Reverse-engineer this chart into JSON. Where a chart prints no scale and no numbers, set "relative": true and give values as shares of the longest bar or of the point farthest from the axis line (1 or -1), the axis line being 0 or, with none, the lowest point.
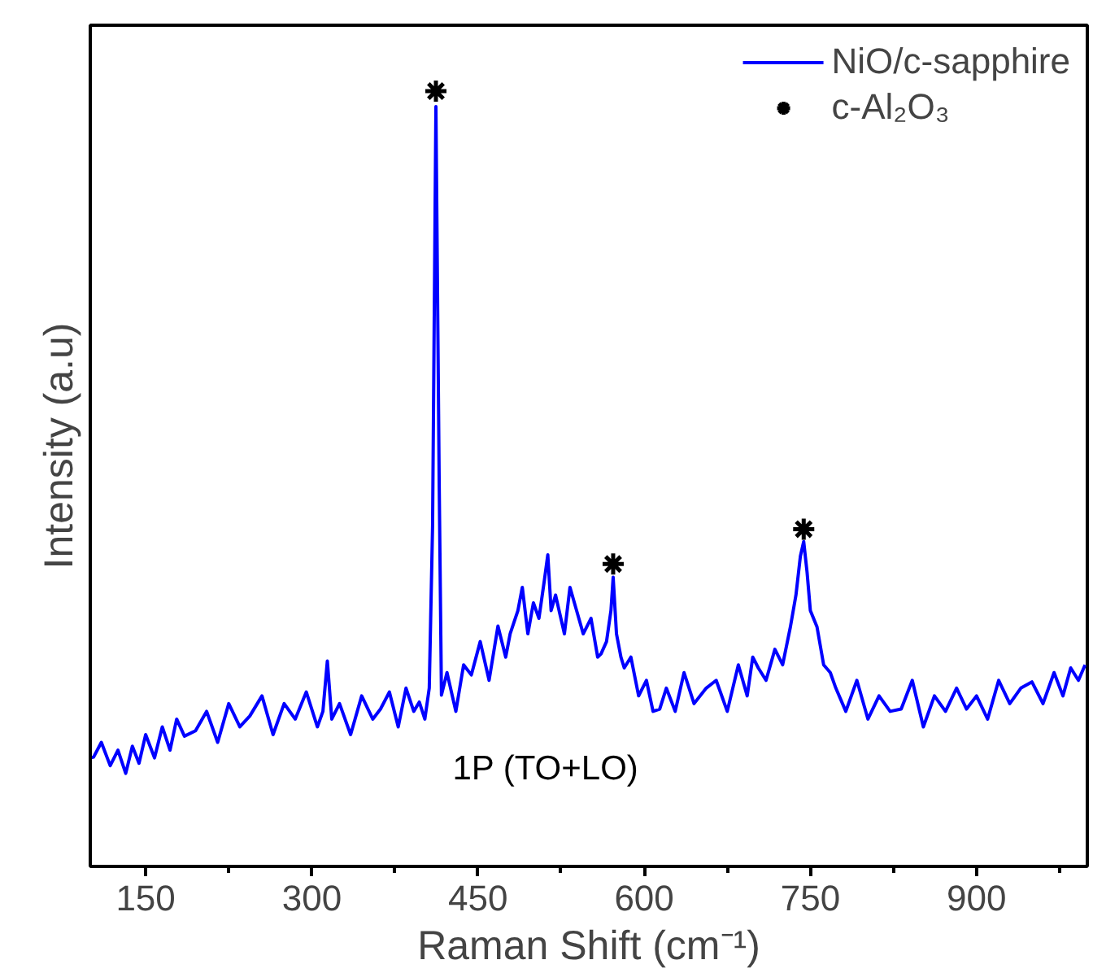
{
  "chart_data": {
    "type": "line",
    "relative": true,
    "xlabel": "Raman Shift (cm⁻¹)",
    "ylabel": "Intensity (a.u)",
    "xlim": [
      100,
      1000
    ],
    "xticks": [
      150,
      300,
      450,
      600,
      750,
      900
    ],
    "legend": "top right",
    "grid": false,
    "series": [
      {
        "name": "NiO/c-sapphire",
        "color": "#0000ff",
        "x": [
          100,
          103,
          110,
          118,
          125,
          132,
          138,
          144,
          150,
          158,
          165,
          172,
          178,
          185,
          195,
          205,
          215,
          225,
          235,
          244,
          255,
          265,
          275,
          285,
          295,
          305,
          310,
          314,
          318,
          325,
          335,
          345,
          355,
          362,
          370,
          378,
          385,
          392,
          397,
          402,
          406,
          409,
          412,
          415,
          417,
          422,
          430,
          437,
          444,
          452,
          460,
          468,
          475,
          479,
          486,
          490,
          495,
          500,
          505,
          510,
          513,
          516,
          520,
          528,
          533,
          538,
          545,
          552,
          558,
          561,
          566,
          570,
          572,
          575,
          579,
          582,
          588,
          595,
          602,
          608,
          614,
          620,
          628,
          636,
          645,
          656,
          665,
          675,
          685,
          693,
          698,
          703,
          710,
          718,
          725,
          732,
          737,
          741,
          744,
          747,
          750,
          756,
          762,
          768,
          773,
          782,
          792,
          802,
          812,
          822,
          832,
          842,
          852,
          862,
          872,
          882,
          891,
          900,
          910,
          920,
          930,
          940,
          950,
          960,
          970,
          978,
          985,
          992,
          998
        ],
        "values": [
          0.14,
          0.141,
          0.16,
          0.13,
          0.15,
          0.12,
          0.155,
          0.133,
          0.17,
          0.14,
          0.18,
          0.15,
          0.19,
          0.168,
          0.175,
          0.2,
          0.16,
          0.21,
          0.18,
          0.194,
          0.22,
          0.17,
          0.21,
          0.19,
          0.225,
          0.18,
          0.2,
          0.265,
          0.19,
          0.21,
          0.17,
          0.22,
          0.19,
          0.203,
          0.225,
          0.18,
          0.23,
          0.2,
          0.212,
          0.19,
          0.23,
          0.44,
          0.98,
          0.49,
          0.221,
          0.25,
          0.2,
          0.26,
          0.247,
          0.29,
          0.24,
          0.31,
          0.27,
          0.3,
          0.33,
          0.36,
          0.3,
          0.34,
          0.32,
          0.37,
          0.402,
          0.33,
          0.35,
          0.3,
          0.36,
          0.335,
          0.3,
          0.32,
          0.27,
          0.274,
          0.29,
          0.33,
          0.373,
          0.3,
          0.27,
          0.256,
          0.27,
          0.22,
          0.24,
          0.2,
          0.203,
          0.23,
          0.2,
          0.25,
          0.21,
          0.23,
          0.24,
          0.2,
          0.26,
          0.22,
          0.27,
          0.256,
          0.24,
          0.28,
          0.26,
          0.309,
          0.35,
          0.4,
          0.419,
          0.38,
          0.33,
          0.309,
          0.26,
          0.25,
          0.23,
          0.2,
          0.24,
          0.19,
          0.22,
          0.2,
          0.203,
          0.24,
          0.18,
          0.22,
          0.2,
          0.23,
          0.203,
          0.22,
          0.19,
          0.24,
          0.21,
          0.23,
          0.238,
          0.21,
          0.25,
          0.22,
          0.256,
          0.24,
          0.26
        ]
      },
      {
        "name": "c-Al₂O₃",
        "type": "scatter",
        "marker": "cross",
        "color": "#000000",
        "x": [
          412,
          572,
          744
        ],
        "values": [
          1.0,
          0.39,
          0.435
        ]
      }
    ],
    "annotations": [
      "1P (TO+LO)"
    ]
  }
}
